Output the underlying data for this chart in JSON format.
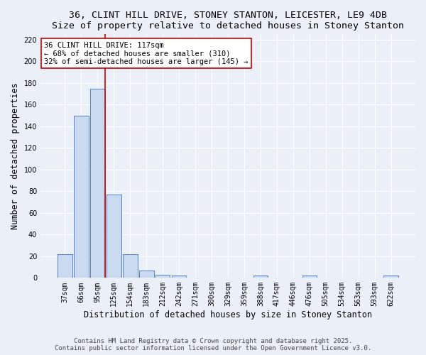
{
  "title_line1": "36, CLINT HILL DRIVE, STONEY STANTON, LEICESTER, LE9 4DB",
  "title_line2": "Size of property relative to detached houses in Stoney Stanton",
  "xlabel": "Distribution of detached houses by size in Stoney Stanton",
  "ylabel": "Number of detached properties",
  "bin_labels": [
    "37sqm",
    "66sqm",
    "95sqm",
    "125sqm",
    "154sqm",
    "183sqm",
    "212sqm",
    "242sqm",
    "271sqm",
    "300sqm",
    "329sqm",
    "359sqm",
    "388sqm",
    "417sqm",
    "446sqm",
    "476sqm",
    "505sqm",
    "534sqm",
    "563sqm",
    "593sqm",
    "622sqm"
  ],
  "bar_heights": [
    22,
    150,
    175,
    77,
    22,
    7,
    3,
    2,
    0,
    0,
    0,
    0,
    2,
    0,
    0,
    2,
    0,
    0,
    0,
    0,
    2
  ],
  "bar_color": "#c9d9ef",
  "bar_edge_color": "#4472c4",
  "vline_x_index": 2.45,
  "vline_color": "#cc0000",
  "annotation_text_line1": "36 CLINT HILL DRIVE: 117sqm",
  "annotation_text_line2": "← 68% of detached houses are smaller (310)",
  "annotation_text_line3": "32% of semi-detached houses are larger (145) →",
  "annotation_box_color": "#ffffff",
  "annotation_box_edge_color": "#cc0000",
  "ylim": [
    0,
    225
  ],
  "yticks": [
    0,
    20,
    40,
    60,
    80,
    100,
    120,
    140,
    160,
    180,
    200,
    220
  ],
  "footer_line1": "Contains HM Land Registry data © Crown copyright and database right 2025.",
  "footer_line2": "Contains public sector information licensed under the Open Government Licence v3.0.",
  "bg_color": "#eaeff8",
  "grid_color": "#ffffff",
  "title_fontsize": 9.5,
  "axis_label_fontsize": 8.5,
  "tick_fontsize": 7,
  "footer_fontsize": 6.5,
  "annotation_fontsize": 7.5
}
